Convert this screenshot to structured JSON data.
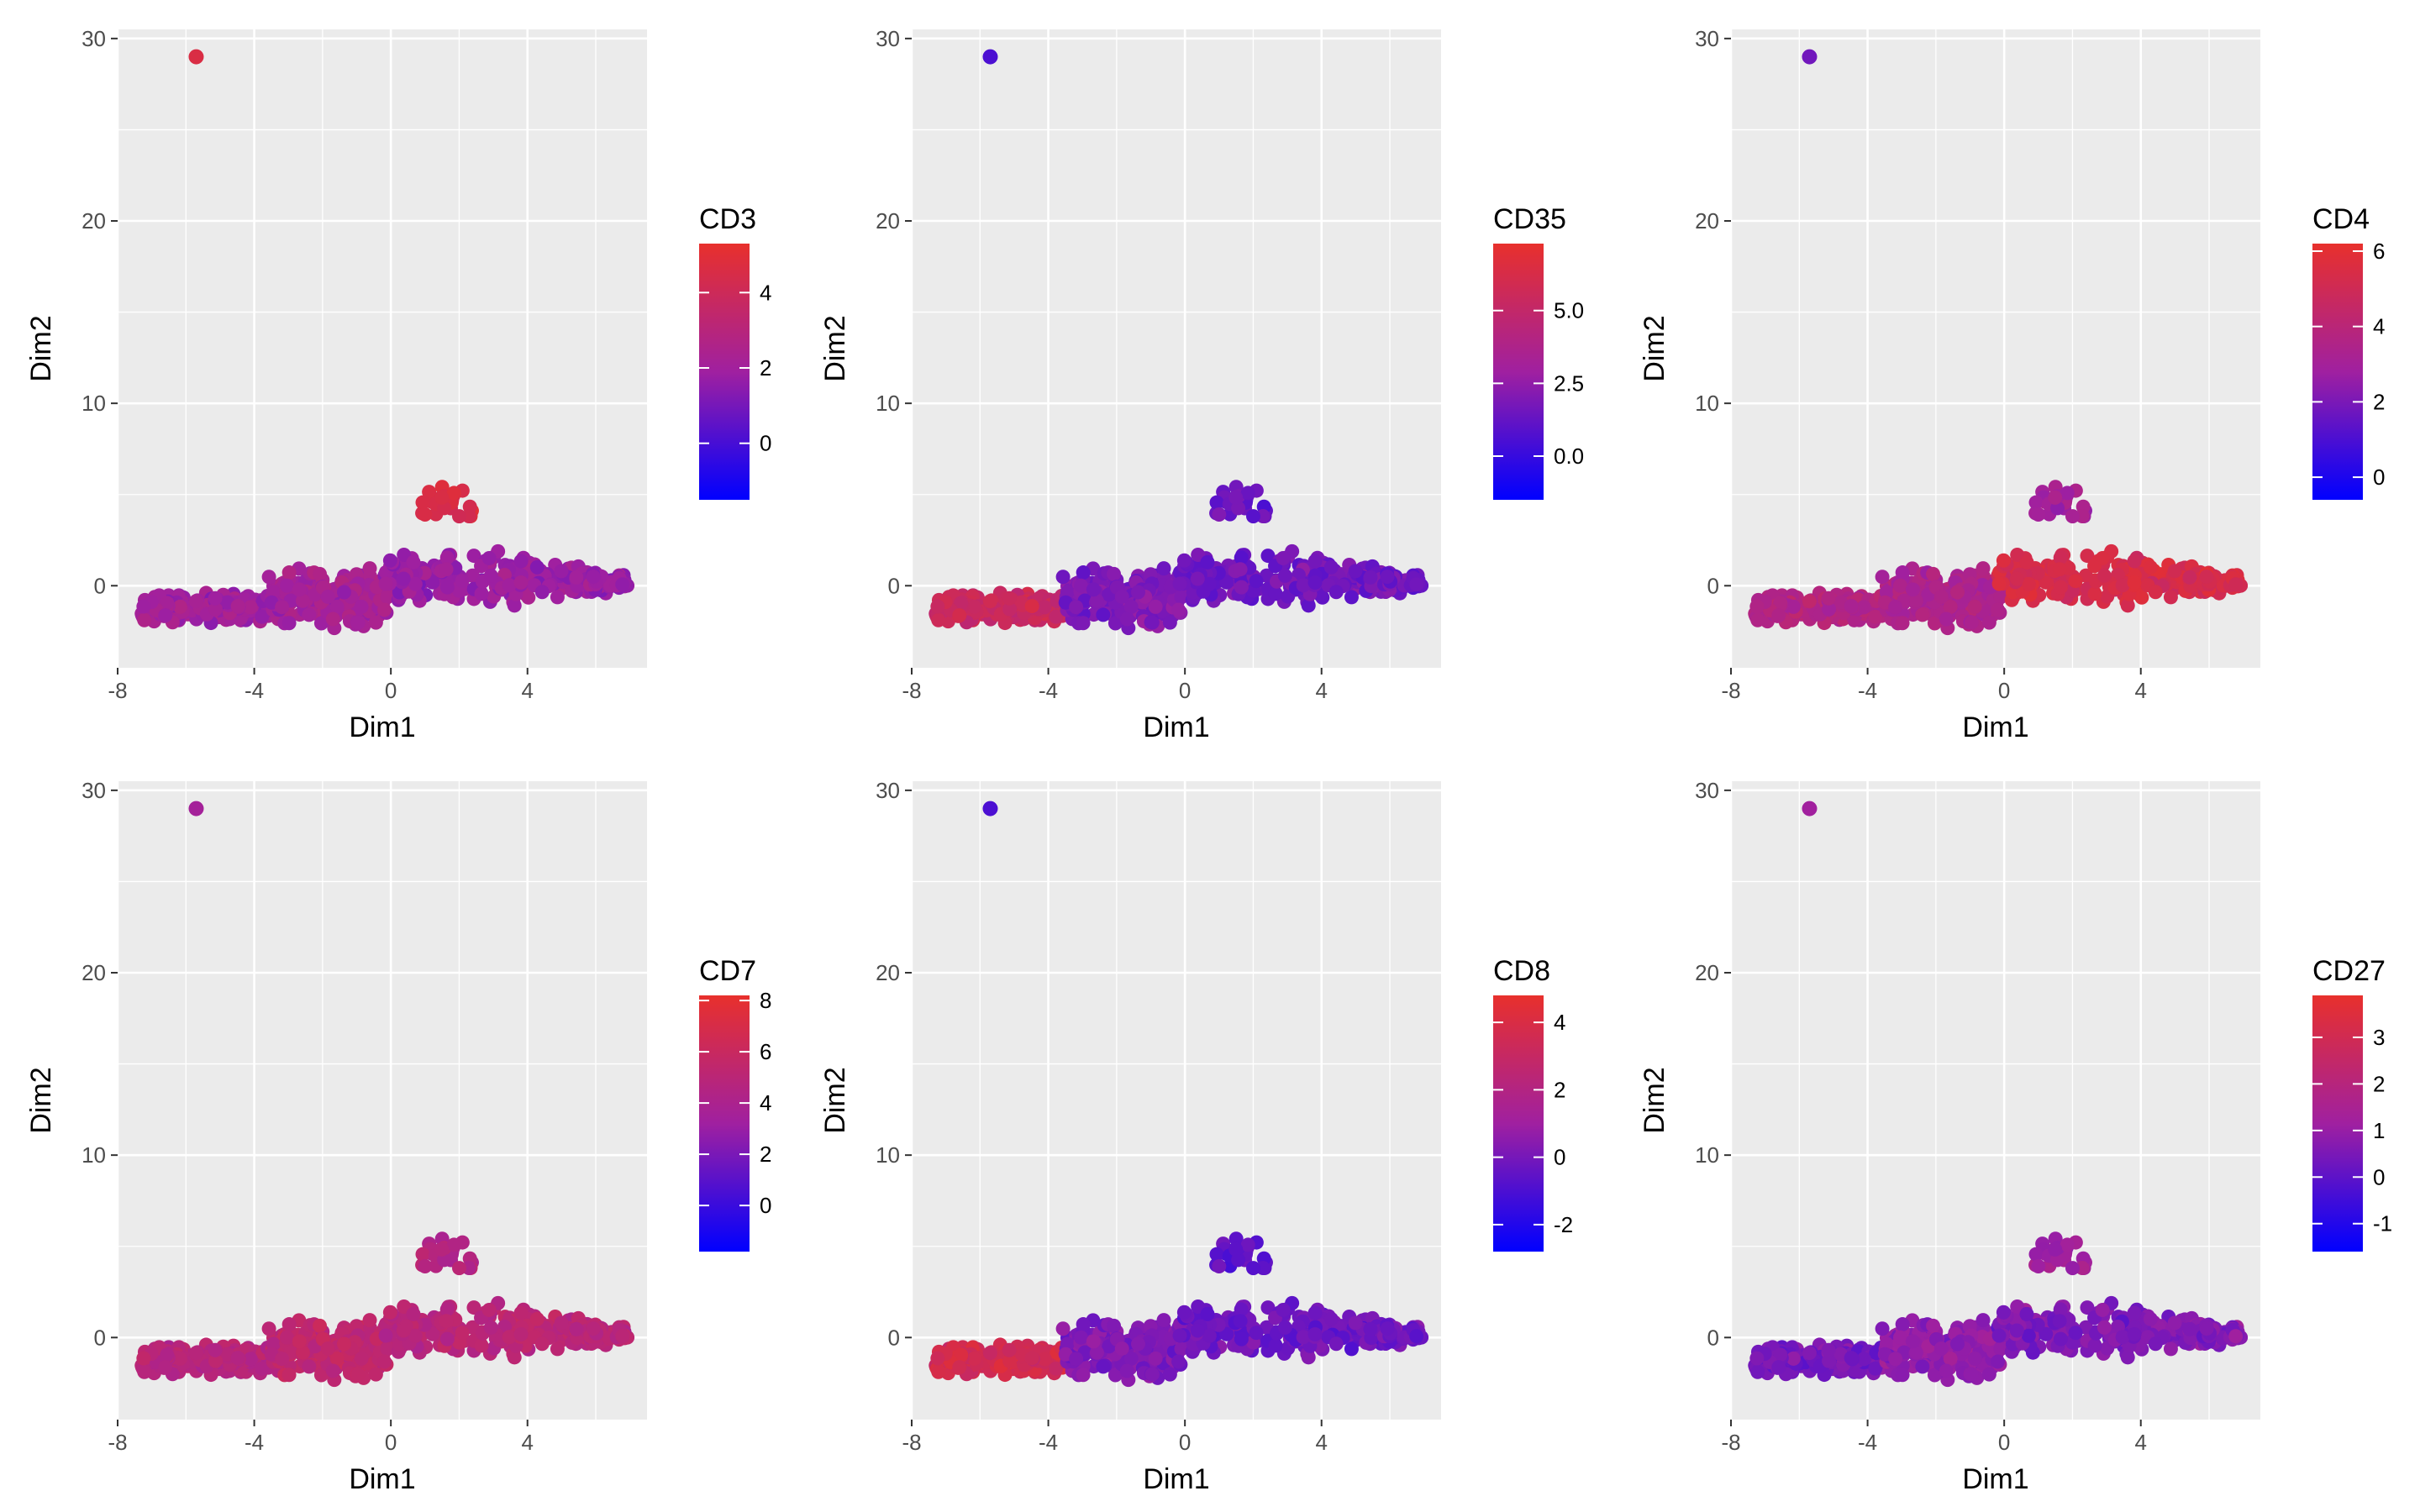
{
  "colors": {
    "low": "#0000ff",
    "mid": "#a020a0",
    "high": "#e8302c",
    "panel_bg": "#ebebeb",
    "grid": "#ffffff"
  },
  "chart_data": [
    {
      "type": "scatter",
      "xlabel": "Dim1",
      "ylabel": "Dim2",
      "xlim": [
        -8,
        7.5
      ],
      "ylim": [
        -4.5,
        30.5
      ],
      "xticks": [
        "-8",
        "-4",
        "0",
        "4"
      ],
      "yticks": [
        "0",
        "10",
        "20",
        "30"
      ],
      "legend": {
        "title": "CD3",
        "placement": "right",
        "range": [
          -1.5,
          5.3
        ],
        "ticks": [
          0,
          2,
          4
        ],
        "tick_labels": [
          "0",
          "2",
          "4"
        ]
      },
      "outlier": {
        "x": -5.7,
        "y": 29,
        "value": 4.6
      },
      "cluster_bias": {
        "left": 2.0,
        "center": 2.2,
        "right": 1.8,
        "bump": 4.5
      }
    },
    {
      "type": "scatter",
      "xlabel": "Dim1",
      "ylabel": "Dim2",
      "xlim": [
        -8,
        7.5
      ],
      "ylim": [
        -4.5,
        30.5
      ],
      "xticks": [
        "-8",
        "-4",
        "0",
        "4"
      ],
      "yticks": [
        "0",
        "10",
        "20",
        "30"
      ],
      "legend": {
        "title": "CD35",
        "placement": "right",
        "range": [
          -1.5,
          7.3
        ],
        "ticks": [
          0,
          2.5,
          5
        ],
        "tick_labels": [
          "0.0",
          "2.5",
          "5.0"
        ]
      },
      "outlier": {
        "x": -5.7,
        "y": 29,
        "value": 0.6
      },
      "cluster_bias": {
        "left": 5.4,
        "center": 2.0,
        "right": 1.6,
        "bump": 1.5
      }
    },
    {
      "type": "scatter",
      "xlabel": "Dim1",
      "ylabel": "Dim2",
      "xlim": [
        -8,
        7.5
      ],
      "ylim": [
        -4.5,
        30.5
      ],
      "xticks": [
        "-8",
        "-4",
        "0",
        "4"
      ],
      "yticks": [
        "0",
        "10",
        "20",
        "30"
      ],
      "legend": {
        "title": "CD4",
        "placement": "right",
        "range": [
          -0.6,
          6.2
        ],
        "ticks": [
          0,
          2,
          4,
          6
        ],
        "tick_labels": [
          "0",
          "2",
          "4",
          "6"
        ]
      },
      "outlier": {
        "x": -5.7,
        "y": 29,
        "value": 1.8
      },
      "cluster_bias": {
        "left": 3.6,
        "center": 3.4,
        "right": 5.3,
        "bump": 3.0
      }
    },
    {
      "type": "scatter",
      "xlabel": "Dim1",
      "ylabel": "Dim2",
      "xlim": [
        -8,
        7.5
      ],
      "ylim": [
        -4.5,
        30.5
      ],
      "xticks": [
        "-8",
        "-4",
        "0",
        "4"
      ],
      "yticks": [
        "0",
        "10",
        "20",
        "30"
      ],
      "legend": {
        "title": "CD7",
        "placement": "right",
        "range": [
          -1.8,
          8.2
        ],
        "ticks": [
          0,
          2,
          4,
          6,
          8
        ],
        "tick_labels": [
          "0",
          "2",
          "4",
          "6",
          "8"
        ]
      },
      "outlier": {
        "x": -5.7,
        "y": 29,
        "value": 3.5
      },
      "cluster_bias": {
        "left": 4.8,
        "center": 5.4,
        "right": 5.0,
        "bump": 4.5
      }
    },
    {
      "type": "scatter",
      "xlabel": "Dim1",
      "ylabel": "Dim2",
      "xlim": [
        -8,
        7.5
      ],
      "ylim": [
        -4.5,
        30.5
      ],
      "xticks": [
        "-8",
        "-4",
        "0",
        "4"
      ],
      "yticks": [
        "0",
        "10",
        "20",
        "30"
      ],
      "legend": {
        "title": "CD8",
        "placement": "right",
        "range": [
          -2.8,
          4.8
        ],
        "ticks": [
          -2,
          0,
          2,
          4
        ],
        "tick_labels": [
          "-2",
          "0",
          "2",
          "4"
        ]
      },
      "outlier": {
        "x": -5.7,
        "y": 29,
        "value": -1.0
      },
      "cluster_bias": {
        "left": 3.6,
        "center": 0.2,
        "right": -0.2,
        "bump": -0.5
      }
    },
    {
      "type": "scatter",
      "xlabel": "Dim1",
      "ylabel": "Dim2",
      "xlim": [
        -8,
        7.5
      ],
      "ylim": [
        -4.5,
        30.5
      ],
      "xticks": [
        "-8",
        "-4",
        "0",
        "4"
      ],
      "yticks": [
        "0",
        "10",
        "20",
        "30"
      ],
      "legend": {
        "title": "CD27",
        "placement": "right",
        "range": [
          -1.6,
          3.9
        ],
        "ticks": [
          -1,
          0,
          1,
          2,
          3
        ],
        "tick_labels": [
          "-1",
          "0",
          "1",
          "2",
          "3"
        ]
      },
      "outlier": {
        "x": -5.7,
        "y": 29,
        "value": 1.2
      },
      "cluster_bias": {
        "left": 0.4,
        "center": 0.9,
        "right": 0.6,
        "bump": 1.2
      }
    }
  ]
}
